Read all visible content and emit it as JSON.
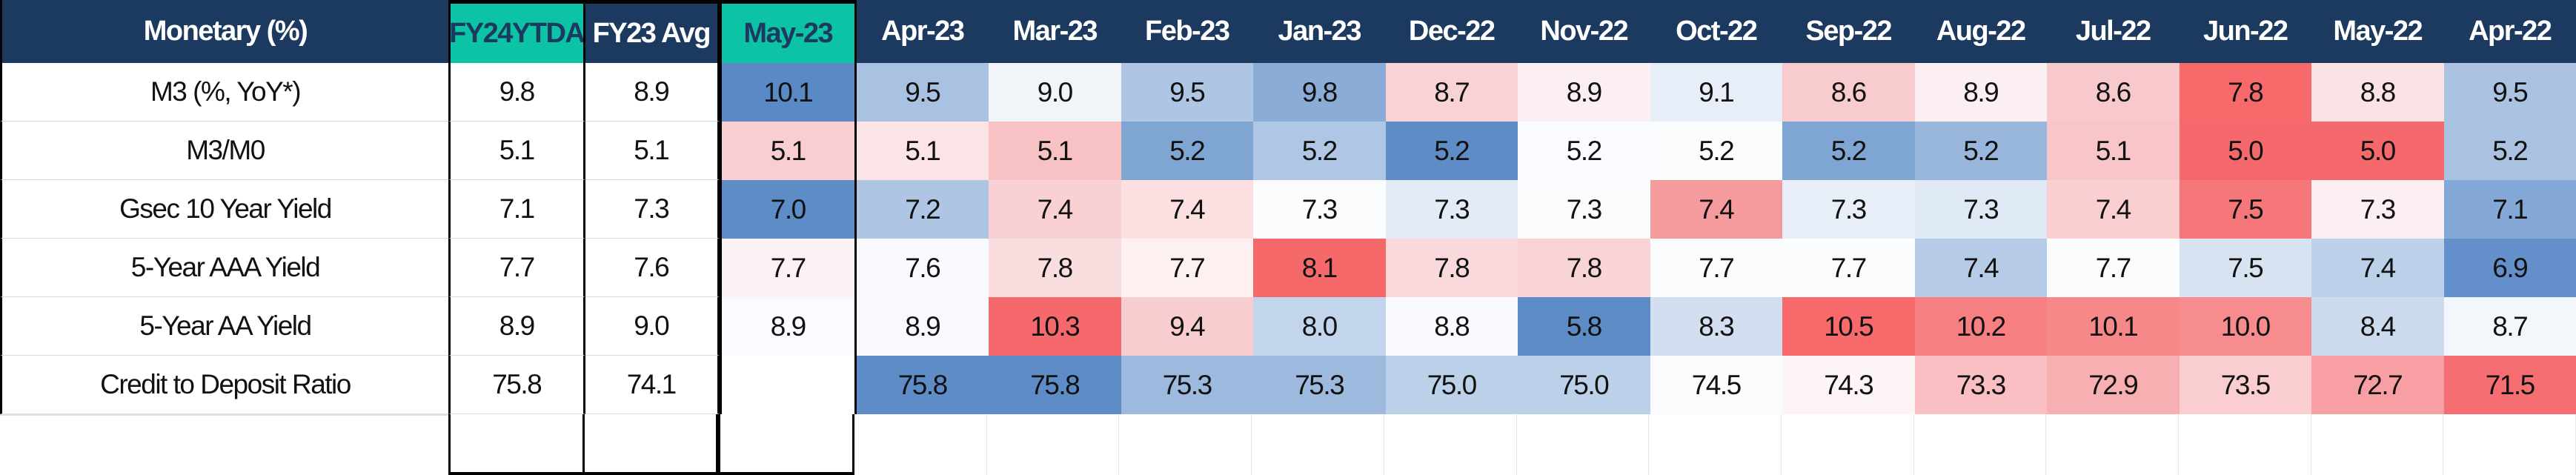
{
  "window": {
    "app": "spreadsheet-heatmap"
  },
  "colors": {
    "header_navy": "#1C3A5F",
    "header_teal": "#0DC3A5",
    "border_black": "#000000",
    "grid_gray": "#DCDCDC",
    "scale_low_red": "#F8696B",
    "scale_mid_white": "#FCFCFF",
    "scale_high_blue": "#5A8AC6"
  },
  "chart_data": {
    "type": "heatmap",
    "title": "Monetary (%)",
    "legend_position": "none",
    "grid": false,
    "columns": [
      {
        "label": "FY24YTDA",
        "style": "teal"
      },
      {
        "label": "FY23 Avg",
        "style": "navy"
      },
      {
        "label": "May-23",
        "style": "teal"
      },
      {
        "label": "Apr-23",
        "style": "navy"
      },
      {
        "label": "Mar-23",
        "style": "navy"
      },
      {
        "label": "Feb-23",
        "style": "navy"
      },
      {
        "label": "Jan-23",
        "style": "navy"
      },
      {
        "label": "Dec-22",
        "style": "navy"
      },
      {
        "label": "Nov-22",
        "style": "navy"
      },
      {
        "label": "Oct-22",
        "style": "navy"
      },
      {
        "label": "Sep-22",
        "style": "navy"
      },
      {
        "label": "Aug-22",
        "style": "navy"
      },
      {
        "label": "Jul-22",
        "style": "navy"
      },
      {
        "label": "Jun-22",
        "style": "navy"
      },
      {
        "label": "May-22",
        "style": "navy"
      },
      {
        "label": "Apr-22",
        "style": "navy"
      }
    ],
    "rows": [
      {
        "label": "M3 (%, YoY*)",
        "fy24ytda": "9.8",
        "fy23_avg": "8.9",
        "values": [
          "10.1",
          "9.5",
          "9.0",
          "9.5",
          "9.8",
          "8.7",
          "8.9",
          "9.1",
          "8.6",
          "8.9",
          "8.6",
          "7.8",
          "8.8",
          "9.5"
        ],
        "colors": [
          "#5A8AC6",
          "#A9C2E1",
          "#F1F5FA",
          "#AEC5E3",
          "#8AACD7",
          "#F9D2D5",
          "#FCEFF1",
          "#E8EEF8",
          "#F8CCCF",
          "#FCEFF1",
          "#F8C9CC",
          "#F8696B",
          "#FBE2E5",
          "#ABC3E1"
        ]
      },
      {
        "label": "M3/M0",
        "fy24ytda": "5.1",
        "fy23_avg": "5.1",
        "values": [
          "5.1",
          "5.1",
          "5.1",
          "5.2",
          "5.2",
          "5.2",
          "5.2",
          "5.2",
          "5.2",
          "5.2",
          "5.1",
          "5.0",
          "5.0",
          "5.2"
        ],
        "colors": [
          "#F9CED2",
          "#FBE3E6",
          "#F8C2C5",
          "#7FA5D3",
          "#AFC7E4",
          "#5D8CC7",
          "#FAFBFE",
          "#FBFCFE",
          "#7FA5D3",
          "#98B6DC",
          "#F8C6C9",
          "#F5696C",
          "#F5696C",
          "#A9C2E1"
        ]
      },
      {
        "label": "Gsec 10 Year Yield",
        "fy24ytda": "7.1",
        "fy23_avg": "7.3",
        "values": [
          "7.0",
          "7.2",
          "7.4",
          "7.4",
          "7.3",
          "7.3",
          "7.3",
          "7.4",
          "7.3",
          "7.3",
          "7.4",
          "7.5",
          "7.3",
          "7.1"
        ],
        "colors": [
          "#5D8CC7",
          "#AEC6E3",
          "#F9D0D3",
          "#FBDFE1",
          "#FBFCFE",
          "#E3EBF6",
          "#F9FBFD",
          "#F59B9D",
          "#E9EFF8",
          "#DFE9F5",
          "#F9CFD2",
          "#F6777A",
          "#FCEFF1",
          "#84A8D5"
        ]
      },
      {
        "label": "5-Year AAA Yield",
        "fy24ytda": "7.7",
        "fy23_avg": "7.6",
        "values": [
          "7.7",
          "7.6",
          "7.8",
          "7.7",
          "8.1",
          "7.8",
          "7.8",
          "7.7",
          "7.7",
          "7.4",
          "7.7",
          "7.5",
          "7.4",
          "6.9"
        ],
        "colors": [
          "#FDF2F3",
          "#F8FAFD",
          "#FADDDF",
          "#FDF0F1",
          "#F6696B",
          "#F9D9DB",
          "#F9D4D7",
          "#FBFCFE",
          "#FBFCFE",
          "#B6CBE6",
          "#FBFCFE",
          "#D8E3F2",
          "#BCD0E9",
          "#6390CA"
        ]
      },
      {
        "label": "5-Year AA Yield",
        "fy24ytda": "8.9",
        "fy23_avg": "9.0",
        "values": [
          "8.9",
          "8.9",
          "10.3",
          "9.4",
          "8.0",
          "8.8",
          "5.8",
          "8.3",
          "10.5",
          "10.2",
          "10.1",
          "10.0",
          "8.4",
          "8.7"
        ],
        "colors": [
          "#FAFBFE",
          "#F7F9FC",
          "#F5696C",
          "#F8CDD0",
          "#C3D5EC",
          "#F8FAFD",
          "#5C8BC6",
          "#D3DFF0",
          "#F8696B",
          "#F67F82",
          "#F6888A",
          "#F68C8E",
          "#CCDAEE",
          "#F3F6FB"
        ]
      },
      {
        "label": "Credit to Deposit Ratio",
        "fy24ytda": "75.8",
        "fy23_avg": "74.1",
        "values": [
          "",
          "75.8",
          "75.8",
          "75.3",
          "75.3",
          "75.0",
          "75.0",
          "74.5",
          "74.3",
          "73.3",
          "72.9",
          "73.5",
          "72.7",
          "71.5"
        ],
        "colors": [
          "#FFFFFF",
          "#5E8CC7",
          "#5E8CC7",
          "#9DBADE",
          "#9DBADE",
          "#BCD0E9",
          "#BCD0E9",
          "#FBFCFE",
          "#FDF4F5",
          "#F9BFC2",
          "#F8AFB2",
          "#FACDD0",
          "#F79FA2",
          "#F56E71"
        ]
      }
    ]
  }
}
